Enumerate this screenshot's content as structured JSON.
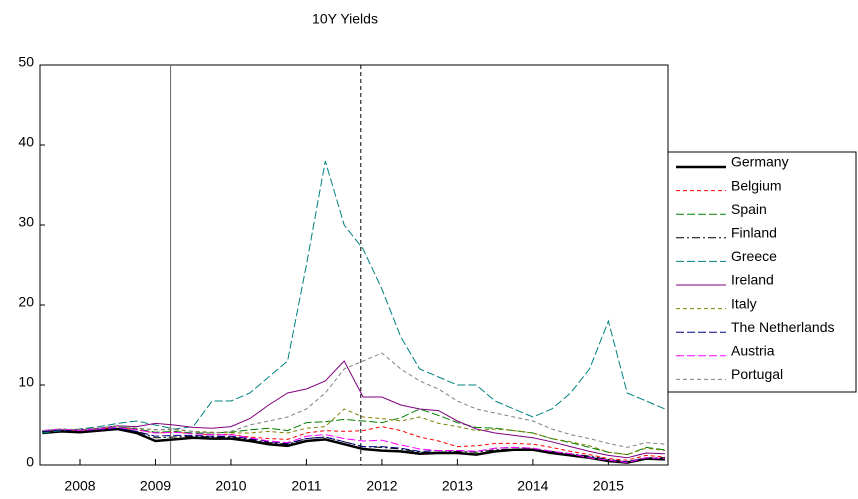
{
  "chart_data": {
    "type": "line",
    "title": "10Y Yields",
    "x": [
      2007.5,
      2007.75,
      2008,
      2008.25,
      2008.5,
      2008.75,
      2009,
      2009.25,
      2009.5,
      2009.75,
      2010,
      2010.25,
      2010.5,
      2010.75,
      2011,
      2011.25,
      2011.5,
      2011.75,
      2012,
      2012.25,
      2012.5,
      2012.75,
      2013,
      2013.25,
      2013.5,
      2013.75,
      2014,
      2014.25,
      2014.5,
      2014.75,
      2015,
      2015.25,
      2015.5,
      2015.75
    ],
    "xlim": [
      2007.47,
      2015.79
    ],
    "xticks": [
      2008,
      2009,
      2010,
      2011,
      2012,
      2013,
      2014,
      2015
    ],
    "ylim": [
      0,
      50
    ],
    "yticks": [
      0,
      10,
      20,
      30,
      40,
      50
    ],
    "vlines": [
      {
        "x": 2009.2,
        "style": "solid",
        "color": "#666666"
      },
      {
        "x": 2011.72,
        "style": "dashed",
        "color": "#000000"
      }
    ],
    "series": [
      {
        "name": "Germany",
        "color": "#000000",
        "style": "solid",
        "width": 2.5,
        "values": [
          4,
          4.2,
          4.1,
          4.3,
          4.5,
          4.0,
          3.0,
          3.2,
          3.4,
          3.3,
          3.3,
          3.0,
          2.6,
          2.4,
          3.0,
          3.2,
          2.6,
          2.0,
          1.8,
          1.7,
          1.4,
          1.5,
          1.5,
          1.3,
          1.7,
          1.9,
          1.9,
          1.5,
          1.2,
          0.9,
          0.5,
          0.3,
          0.8,
          0.7
        ]
      },
      {
        "name": "Belgium",
        "color": "#ff0000",
        "style": "dashed",
        "width": 1,
        "values": [
          4.2,
          4.4,
          4.3,
          4.5,
          4.7,
          4.4,
          4.0,
          4.1,
          3.9,
          3.8,
          3.8,
          3.5,
          3.3,
          3.2,
          4.0,
          4.3,
          4.2,
          4.3,
          4.8,
          4.3,
          3.5,
          3.0,
          2.3,
          2.4,
          2.7,
          2.7,
          2.6,
          2.2,
          1.7,
          1.3,
          0.8,
          0.6,
          1.2,
          1.0
        ]
      },
      {
        "name": "Spain",
        "color": "#008000",
        "style": "longdash",
        "width": 1,
        "values": [
          4.2,
          4.4,
          4.3,
          4.5,
          4.8,
          4.5,
          4.1,
          4.2,
          4.0,
          4.0,
          4.1,
          4.4,
          4.6,
          4.3,
          5.3,
          5.4,
          5.7,
          5.5,
          5.3,
          5.9,
          7.0,
          6.2,
          5.3,
          4.7,
          4.6,
          4.3,
          4.0,
          3.3,
          2.8,
          2.2,
          1.6,
          1.3,
          2.2,
          1.9
        ]
      },
      {
        "name": "Finland",
        "color": "#000000",
        "style": "dashdot",
        "width": 1,
        "values": [
          4.1,
          4.3,
          4.2,
          4.4,
          4.6,
          4.2,
          3.4,
          3.5,
          3.6,
          3.5,
          3.5,
          3.2,
          2.8,
          2.6,
          3.3,
          3.5,
          2.9,
          2.3,
          2.2,
          2.0,
          1.6,
          1.6,
          1.7,
          1.6,
          1.9,
          2.0,
          2.0,
          1.7,
          1.4,
          1.1,
          0.7,
          0.4,
          0.9,
          0.9
        ]
      },
      {
        "name": "Greece",
        "color": "#008080",
        "style": "longdash",
        "width": 1,
        "values": [
          4,
          4.3,
          4.5,
          4.8,
          5.2,
          5.5,
          5,
          4.5,
          4.8,
          8,
          8,
          9,
          11,
          13,
          25,
          38,
          30,
          27,
          22,
          16,
          12,
          11,
          10,
          10,
          8,
          7,
          6,
          7,
          9,
          12,
          18,
          9,
          8,
          7
        ]
      },
      {
        "name": "Ireland",
        "color": "#800080",
        "style": "solid",
        "width": 1,
        "values": [
          4.2,
          4.4,
          4.4,
          4.6,
          4.9,
          4.8,
          5.2,
          5.0,
          4.7,
          4.6,
          4.8,
          5.8,
          7.5,
          9.0,
          9.5,
          10.5,
          13.0,
          8.5,
          8.5,
          7.5,
          7.0,
          6.8,
          5.5,
          4.5,
          4.0,
          3.7,
          3.4,
          2.9,
          2.3,
          1.7,
          1.2,
          0.9,
          1.5,
          1.4
        ]
      },
      {
        "name": "Italy",
        "color": "#808000",
        "style": "dashed",
        "width": 1,
        "values": [
          4.3,
          4.5,
          4.4,
          4.6,
          4.9,
          4.6,
          4.4,
          4.4,
          4.2,
          4.1,
          4.0,
          4.0,
          4.2,
          4.0,
          4.6,
          4.8,
          7.0,
          6.0,
          5.8,
          5.5,
          6.0,
          5.2,
          4.8,
          4.3,
          4.5,
          4.3,
          4.0,
          3.3,
          2.9,
          2.4,
          1.6,
          1.3,
          2.1,
          1.8
        ]
      },
      {
        "name": "The Netherlands",
        "color": "#000080",
        "style": "longdash",
        "width": 1,
        "values": [
          4.2,
          4.4,
          4.3,
          4.4,
          4.6,
          4.2,
          3.6,
          3.7,
          3.7,
          3.6,
          3.6,
          3.3,
          2.9,
          2.7,
          3.3,
          3.5,
          2.9,
          2.3,
          2.3,
          2.1,
          1.7,
          1.8,
          1.8,
          1.7,
          2.1,
          2.2,
          2.1,
          1.7,
          1.4,
          1.0,
          0.6,
          0.4,
          0.9,
          0.8
        ]
      },
      {
        "name": "Austria",
        "color": "#ff00ff",
        "style": "longdash",
        "width": 1,
        "values": [
          4.3,
          4.5,
          4.3,
          4.5,
          4.7,
          4.4,
          4.0,
          4.1,
          3.9,
          3.8,
          3.8,
          3.4,
          3.0,
          2.8,
          3.6,
          3.8,
          3.3,
          3.0,
          3.1,
          2.5,
          2.0,
          1.8,
          1.8,
          1.7,
          2.1,
          2.2,
          2.1,
          1.7,
          1.4,
          0.9,
          0.6,
          0.3,
          0.9,
          0.8
        ]
      },
      {
        "name": "Portugal",
        "color": "#808080",
        "style": "dashed",
        "width": 1,
        "values": [
          4.3,
          4.5,
          4.4,
          4.6,
          4.9,
          4.6,
          4.4,
          4.5,
          4.2,
          4.0,
          4.2,
          5.0,
          5.5,
          6.0,
          7.0,
          9.0,
          12.0,
          13.0,
          14.0,
          12.0,
          10.5,
          9.5,
          8.0,
          7.0,
          6.5,
          6.0,
          5.5,
          4.5,
          3.8,
          3.3,
          2.7,
          2.2,
          2.8,
          2.6
        ]
      }
    ]
  }
}
